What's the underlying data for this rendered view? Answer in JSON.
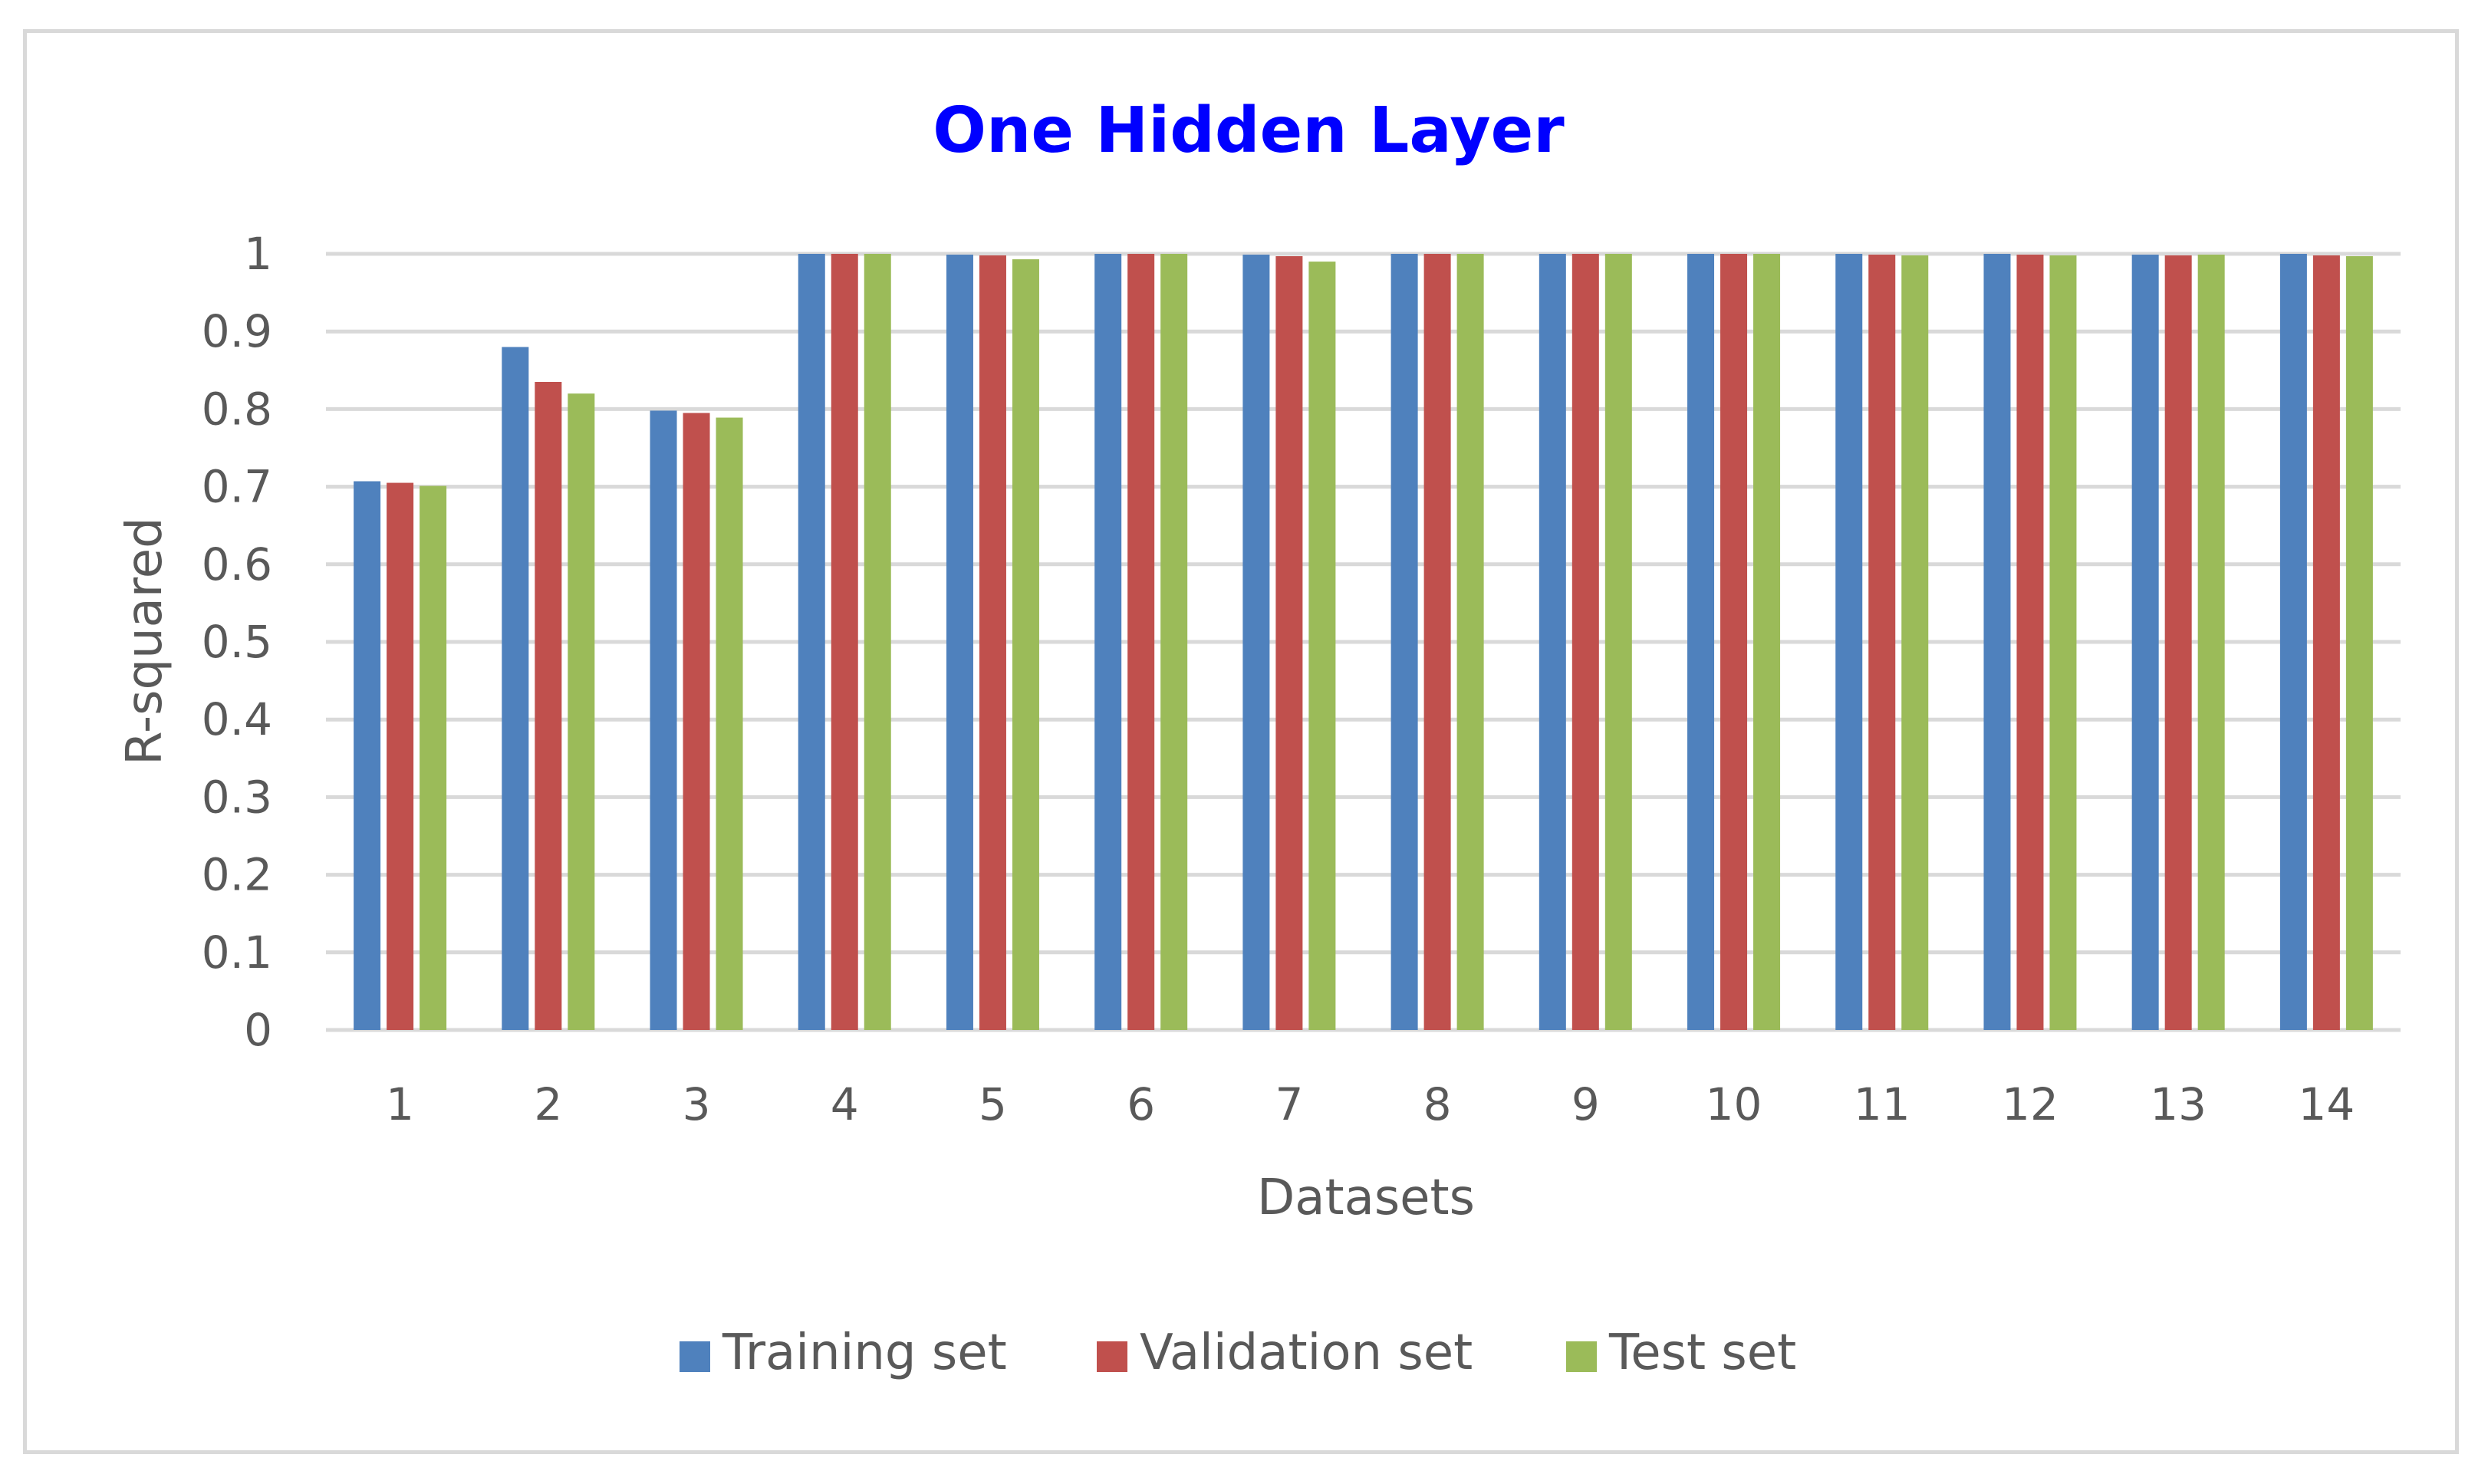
{
  "chart_data": {
    "type": "bar",
    "title": "One Hidden Layer",
    "xlabel": "Datasets",
    "ylabel": "R-squared",
    "categories": [
      "1",
      "2",
      "3",
      "4",
      "5",
      "6",
      "7",
      "8",
      "9",
      "10",
      "11",
      "12",
      "13",
      "14"
    ],
    "y_ticks": [
      "0",
      "0.1",
      "0.2",
      "0.3",
      "0.4",
      "0.5",
      "0.6",
      "0.7",
      "0.8",
      "0.9",
      "1"
    ],
    "ylim": [
      0,
      1
    ],
    "grid": true,
    "legend_position": "bottom",
    "series": [
      {
        "name": "Training set",
        "color": "#4f81bd",
        "values": [
          0.707,
          0.88,
          0.798,
          1.0,
          0.999,
          1.0,
          0.999,
          1.0,
          1.0,
          1.0,
          1.0,
          1.0,
          0.999,
          1.0
        ]
      },
      {
        "name": "Validation set",
        "color": "#c0504d",
        "values": [
          0.705,
          0.835,
          0.795,
          1.0,
          0.998,
          1.0,
          0.997,
          1.0,
          1.0,
          1.0,
          0.999,
          0.999,
          0.998,
          0.998
        ]
      },
      {
        "name": "Test set",
        "color": "#9bbb59",
        "values": [
          0.701,
          0.82,
          0.789,
          1.0,
          0.993,
          1.0,
          0.99,
          1.0,
          1.0,
          1.0,
          0.998,
          0.998,
          0.999,
          0.997
        ]
      }
    ]
  },
  "colors": {
    "title": "#0000ff",
    "gridline": "#d9d9d9",
    "text": "#595959",
    "border": "#d9d9d9"
  }
}
